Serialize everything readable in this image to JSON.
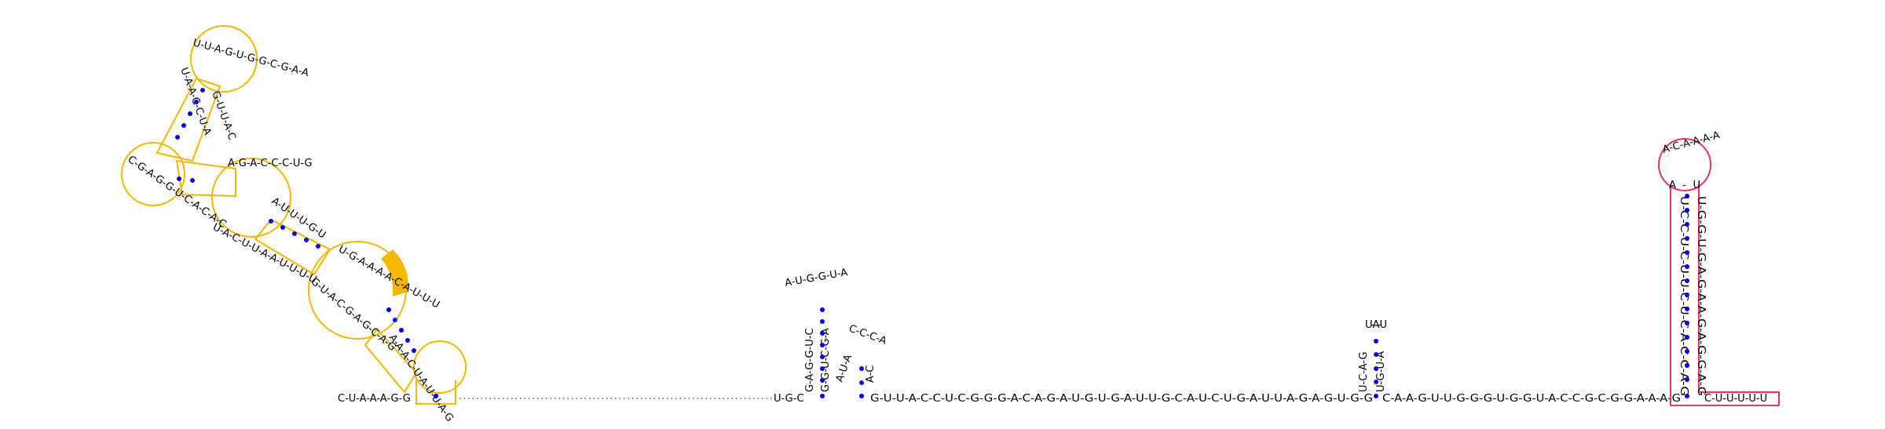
{
  "colors": {
    "motif_outline": "#f5b800",
    "motif_highlight": "#f5b800",
    "terminator_outline": "#e3326f",
    "base_pair_dot": "#0000ee",
    "nucleotide_text": "#000000"
  },
  "left_structure": {
    "tail_5prime": "C-U-A-A-A-G-G",
    "hairpin_top": "U-U-A-G-U-G-G-C-G-A-A",
    "hairpin_stem_5prime": "U-A-A-C-C-U-A",
    "hairpin_stem_3prime": "G-U-U-A-C",
    "left_loop": "C-G-A-G-G-U-C-A-C-A-C",
    "middle_loop": "A-G-A-C-C-C-U-G",
    "middle_stem": "A-U-U-U-G-U",
    "lower_strand": "U-A-C-U-U-A-A-U-U-U-U",
    "large_loop": "U-G-A-A-A-A-C-A-U-U-U",
    "large_loop_lower": "G-U-A-C-G-A-G-C-A-G",
    "small_hairpin": "A-A-A-C-U-A-U-U-A-G",
    "highlighted_bases": [
      "A",
      "C",
      "A"
    ]
  },
  "gap_connector": "................................",
  "hairpin_2": {
    "loop": "A-U-G-G-U-A",
    "stem_5prime": "G-A-G-G-U-C",
    "stem_3prime": "G-G-U-C-G-A",
    "base_3prime_in_loop": "A",
    "strand_prefix": "U-G-C"
  },
  "hairpin_3": {
    "loop": "C-C-C-A",
    "stem_5prime": "A-U-A",
    "stem_3prime": "A-C"
  },
  "middle_strand": "G-U-U-A-C-C-U-C-G-G-G-A-C-A-G-A-U-G-U-G-A-U-U-G-C-A-U-C-U-G-A-U-U-A-G-A-G-U-G-G",
  "hairpin_4": {
    "loop": "U-A-U",
    "stem_5prime": "U-C-A-G",
    "stem_3prime": "U-G-U-A"
  },
  "strand_after_h4": "C-A-A-G-U-U-G-G-G-U-G-G-U-A-C-C-G-C-G-G-A-A-A-G",
  "terminator": {
    "loop": "A-C-A-A-A-A",
    "loop_inner": "A-U",
    "stem_5prime": "U-C-C-U-C-U-U-C-U-C-A-C-C-A-G",
    "stem_3prime": "U-G-G-U-G-A-G-A-A-G-A-G-G-A-G",
    "tail_3prime": "C-U-U-U-U-U"
  }
}
